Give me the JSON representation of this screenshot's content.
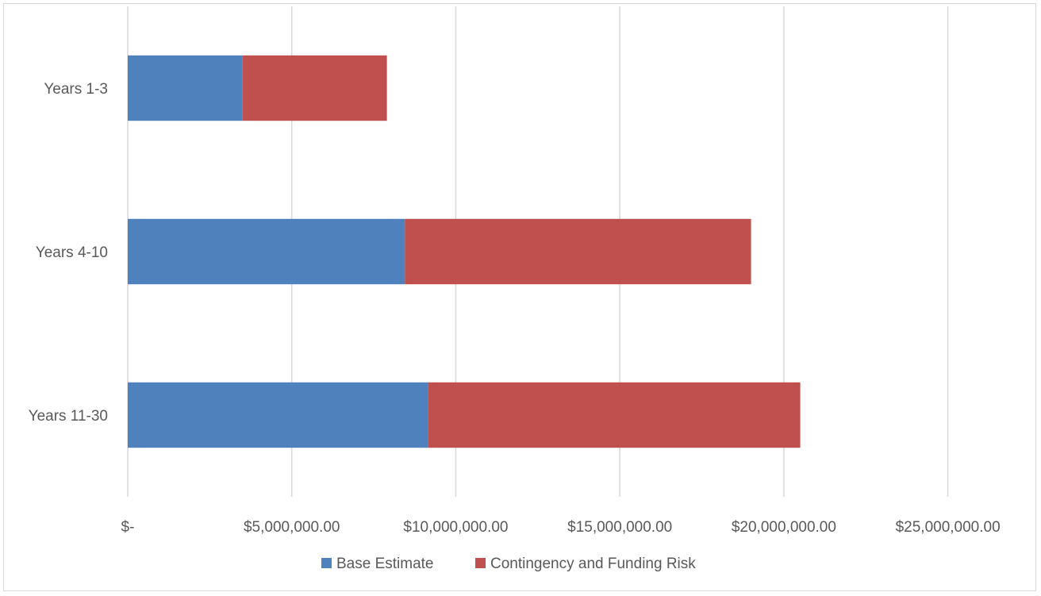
{
  "chart_data": {
    "type": "bar",
    "orientation": "horizontal",
    "stacked": true,
    "categories": [
      "Years 1-3",
      "Years 4-10",
      "Years 11-30"
    ],
    "series": [
      {
        "name": "Base Estimate",
        "values": [
          3500000,
          8450000,
          9150000
        ],
        "color": "#4f81bd"
      },
      {
        "name": "Contingency and Funding Risk",
        "values": [
          4400000,
          10550000,
          11350000
        ],
        "color": "#c0504d"
      }
    ],
    "xlim": [
      0,
      27500000
    ],
    "xticks": [
      {
        "value": 0,
        "label": "$-"
      },
      {
        "value": 5000000,
        "label": "$5,000,000.00"
      },
      {
        "value": 10000000,
        "label": "$10,000,000.00"
      },
      {
        "value": 15000000,
        "label": "$15,000,000.00"
      },
      {
        "value": 20000000,
        "label": "$20,000,000.00"
      },
      {
        "value": 25000000,
        "label": "$25,000,000.00"
      }
    ],
    "grid": true,
    "legend_position": "bottom",
    "title": "",
    "xlabel": "",
    "ylabel": ""
  }
}
